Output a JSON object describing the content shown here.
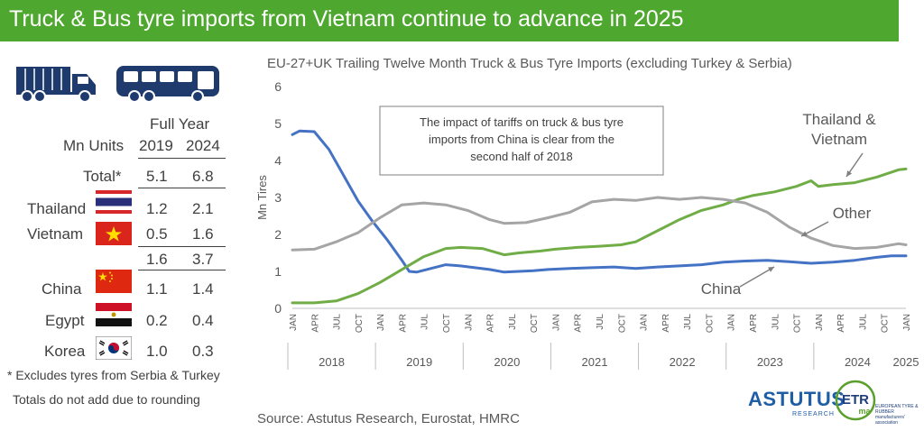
{
  "banner": {
    "title": "Truck & Bus tyre imports from Vietnam continue to advance in 2025"
  },
  "icons": {
    "truck": "truck-icon",
    "bus": "bus-icon",
    "color": "#1f3b6e"
  },
  "table": {
    "header_top": "Full Year",
    "unit_label": "Mn Units",
    "years": [
      "2019",
      "2024"
    ],
    "rows": [
      {
        "label": "Total*",
        "flag": "",
        "v2019": "5.1",
        "v2024": "6.8"
      },
      {
        "label": "Thailand",
        "flag": "thailand-flag",
        "v2019": "1.2",
        "v2024": "2.1"
      },
      {
        "label": "Vietnam",
        "flag": "vietnam-flag",
        "v2019": "0.5",
        "v2024": "1.6"
      },
      {
        "label": "",
        "flag": "",
        "v2019": "1.6",
        "v2024": "3.7"
      },
      {
        "label": "China",
        "flag": "china-flag",
        "v2019": "1.1",
        "v2024": "1.4"
      },
      {
        "label": "Egypt",
        "flag": "egypt-flag",
        "v2019": "0.2",
        "v2024": "0.4"
      },
      {
        "label": "Korea",
        "flag": "korea-flag",
        "v2019": "1.0",
        "v2024": "0.3"
      }
    ],
    "footnote1": "* Excludes tyres from Serbia & Turkey",
    "footnote2": "Totals do not add due to rounding"
  },
  "source": "Source: Astutus Research, Eurostat, HMRC",
  "logos": {
    "astutus": "ASTUTUS",
    "astutus_sub": "RESEARCH",
    "etrma": "ETR",
    "etrma_sub": "ma",
    "etrma_text": "EUROPEAN TYRE & RUBBER manufacturers' association"
  },
  "chart_data": {
    "type": "line",
    "title": "EU-27+UK Trailing Twelve Month Truck & Bus Tyre Imports (excluding Turkey & Serbia)",
    "ylabel": "Mn Tires",
    "ylim": [
      0,
      6
    ],
    "yticks": [
      "0",
      "1",
      "2",
      "3",
      "4",
      "5",
      "6"
    ],
    "x_start": "2018-01",
    "x_end": "2025-01",
    "month_tick_labels": [
      "JAN",
      "APR",
      "JUL",
      "OCT"
    ],
    "year_labels": [
      "2018",
      "2019",
      "2020",
      "2021",
      "2022",
      "2023",
      "2024",
      "2025"
    ],
    "annotation_box": "The impact of tariffs on truck & bus tyre imports from China is clear from the second half of 2018",
    "series": [
      {
        "name": "China",
        "color": "#4472c4",
        "points": [
          [
            "2018-01",
            4.7
          ],
          [
            "2018-02",
            4.8
          ],
          [
            "2018-04",
            4.78
          ],
          [
            "2018-06",
            4.3
          ],
          [
            "2018-08",
            3.6
          ],
          [
            "2018-10",
            2.9
          ],
          [
            "2018-12",
            2.35
          ],
          [
            "2019-02",
            1.85
          ],
          [
            "2019-04",
            1.3
          ],
          [
            "2019-05",
            1.0
          ],
          [
            "2019-06",
            0.98
          ],
          [
            "2019-08",
            1.08
          ],
          [
            "2019-10",
            1.18
          ],
          [
            "2019-12",
            1.15
          ],
          [
            "2020-02",
            1.1
          ],
          [
            "2020-04",
            1.05
          ],
          [
            "2020-06",
            0.98
          ],
          [
            "2020-08",
            1.0
          ],
          [
            "2020-10",
            1.02
          ],
          [
            "2020-12",
            1.05
          ],
          [
            "2021-03",
            1.08
          ],
          [
            "2021-06",
            1.1
          ],
          [
            "2021-09",
            1.12
          ],
          [
            "2021-12",
            1.08
          ],
          [
            "2022-03",
            1.12
          ],
          [
            "2022-06",
            1.15
          ],
          [
            "2022-09",
            1.18
          ],
          [
            "2022-12",
            1.25
          ],
          [
            "2023-03",
            1.28
          ],
          [
            "2023-06",
            1.3
          ],
          [
            "2023-09",
            1.26
          ],
          [
            "2023-12",
            1.22
          ],
          [
            "2024-03",
            1.25
          ],
          [
            "2024-06",
            1.3
          ],
          [
            "2024-09",
            1.38
          ],
          [
            "2024-11",
            1.42
          ],
          [
            "2025-01",
            1.42
          ]
        ]
      },
      {
        "name": "Thailand & Vietnam",
        "color": "#70ad47",
        "points": [
          [
            "2018-01",
            0.15
          ],
          [
            "2018-04",
            0.15
          ],
          [
            "2018-07",
            0.2
          ],
          [
            "2018-10",
            0.4
          ],
          [
            "2019-01",
            0.7
          ],
          [
            "2019-04",
            1.05
          ],
          [
            "2019-07",
            1.4
          ],
          [
            "2019-10",
            1.62
          ],
          [
            "2019-12",
            1.65
          ],
          [
            "2020-03",
            1.62
          ],
          [
            "2020-06",
            1.45
          ],
          [
            "2020-08",
            1.5
          ],
          [
            "2020-11",
            1.55
          ],
          [
            "2021-01",
            1.6
          ],
          [
            "2021-04",
            1.65
          ],
          [
            "2021-07",
            1.68
          ],
          [
            "2021-10",
            1.72
          ],
          [
            "2021-12",
            1.8
          ],
          [
            "2022-03",
            2.1
          ],
          [
            "2022-06",
            2.4
          ],
          [
            "2022-09",
            2.65
          ],
          [
            "2022-12",
            2.8
          ],
          [
            "2023-02",
            2.95
          ],
          [
            "2023-04",
            3.05
          ],
          [
            "2023-07",
            3.15
          ],
          [
            "2023-10",
            3.3
          ],
          [
            "2023-12",
            3.45
          ],
          [
            "2024-01",
            3.3
          ],
          [
            "2024-03",
            3.35
          ],
          [
            "2024-06",
            3.4
          ],
          [
            "2024-09",
            3.55
          ],
          [
            "2024-12",
            3.75
          ],
          [
            "2025-01",
            3.77
          ]
        ]
      },
      {
        "name": "Other",
        "color": "#a5a5a5",
        "points": [
          [
            "2018-01",
            1.58
          ],
          [
            "2018-04",
            1.6
          ],
          [
            "2018-07",
            1.8
          ],
          [
            "2018-10",
            2.05
          ],
          [
            "2019-01",
            2.45
          ],
          [
            "2019-04",
            2.8
          ],
          [
            "2019-07",
            2.85
          ],
          [
            "2019-10",
            2.8
          ],
          [
            "2020-01",
            2.65
          ],
          [
            "2020-04",
            2.4
          ],
          [
            "2020-06",
            2.3
          ],
          [
            "2020-09",
            2.32
          ],
          [
            "2020-12",
            2.45
          ],
          [
            "2021-03",
            2.6
          ],
          [
            "2021-06",
            2.88
          ],
          [
            "2021-09",
            2.95
          ],
          [
            "2021-12",
            2.92
          ],
          [
            "2022-03",
            3.0
          ],
          [
            "2022-06",
            2.95
          ],
          [
            "2022-09",
            3.0
          ],
          [
            "2022-12",
            2.95
          ],
          [
            "2023-03",
            2.85
          ],
          [
            "2023-06",
            2.6
          ],
          [
            "2023-09",
            2.2
          ],
          [
            "2023-12",
            1.9
          ],
          [
            "2024-03",
            1.7
          ],
          [
            "2024-06",
            1.62
          ],
          [
            "2024-09",
            1.65
          ],
          [
            "2024-12",
            1.75
          ],
          [
            "2025-01",
            1.72
          ]
        ]
      }
    ],
    "series_labels": [
      {
        "series": "Thailand & Vietnam",
        "lines": [
          "Thailand &",
          "Vietnam"
        ]
      },
      {
        "series": "Other",
        "lines": [
          "Other"
        ]
      },
      {
        "series": "China",
        "lines": [
          "China"
        ]
      }
    ]
  }
}
